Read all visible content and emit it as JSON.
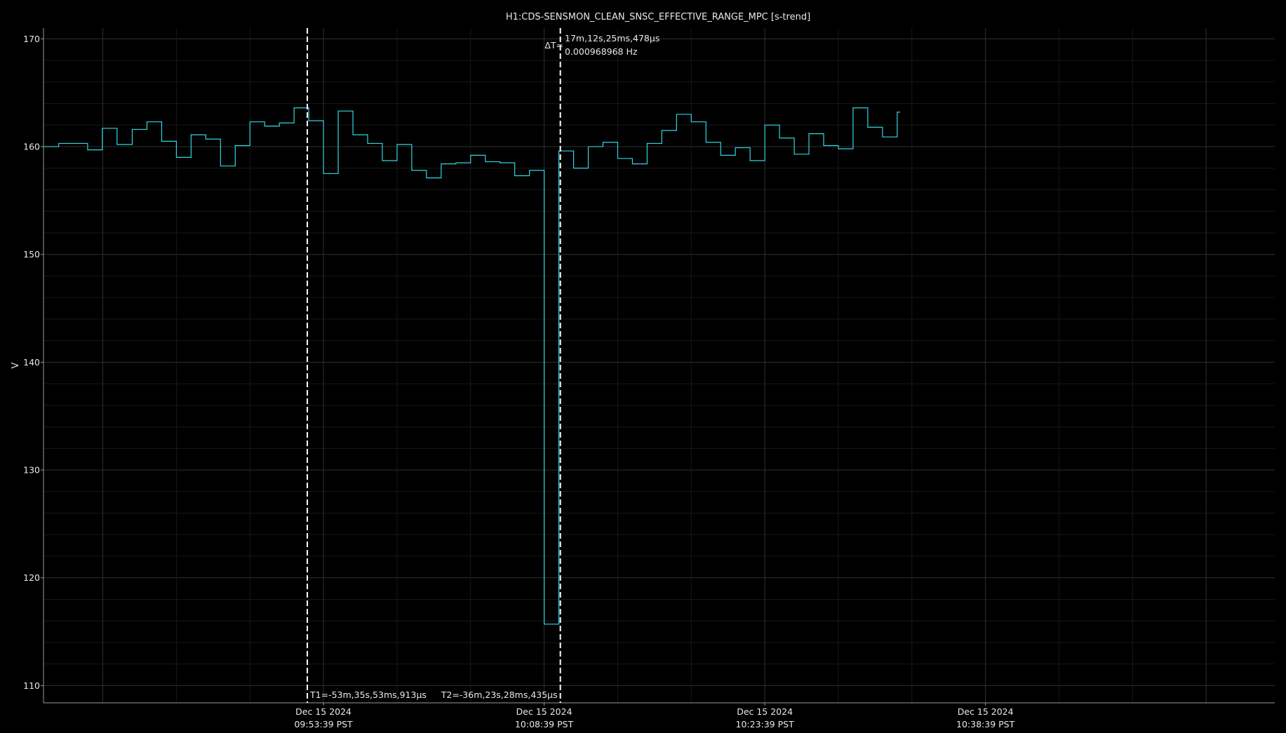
{
  "chart_data": {
    "type": "line",
    "title": "H1:CDS-SENSMON_CLEAN_SNSC_EFFECTIVE_RANGE_MPC [s-trend]",
    "ylabel": "V",
    "xlabel": "",
    "ylim": [
      108.4,
      171.0
    ],
    "yticks": [
      110,
      120,
      130,
      140,
      150,
      160,
      170
    ],
    "xlim_seconds_from_first_tick": [
      -1142,
      3880
    ],
    "xticks": [
      {
        "seconds": 0,
        "date": "Dec 15 2024",
        "time": "09:53:39 PST"
      },
      {
        "seconds": 900,
        "date": "Dec 15 2024",
        "time": "10:08:39 PST"
      },
      {
        "seconds": 1800,
        "date": "Dec 15 2024",
        "time": "10:23:39 PST"
      },
      {
        "seconds": 2700,
        "date": "Dec 15 2024",
        "time": "10:38:39 PST"
      }
    ],
    "grid": true,
    "line_color": "#31d6e3",
    "series": [
      {
        "steps": [
          {
            "x": -1142,
            "y": 160.0
          },
          {
            "x": -1080,
            "y": 160.3
          },
          {
            "x": -962,
            "y": 159.7
          },
          {
            "x": -902,
            "y": 161.7
          },
          {
            "x": -842,
            "y": 160.2
          },
          {
            "x": -780,
            "y": 161.6
          },
          {
            "x": -720,
            "y": 162.3
          },
          {
            "x": -660,
            "y": 160.5
          },
          {
            "x": -600,
            "y": 159.0
          },
          {
            "x": -540,
            "y": 161.1
          },
          {
            "x": -480,
            "y": 160.7
          },
          {
            "x": -420,
            "y": 158.2
          },
          {
            "x": -360,
            "y": 160.1
          },
          {
            "x": -300,
            "y": 162.3
          },
          {
            "x": -240,
            "y": 161.9
          },
          {
            "x": -180,
            "y": 162.2
          },
          {
            "x": -120,
            "y": 163.6
          },
          {
            "x": -60,
            "y": 162.4
          },
          {
            "x": 0,
            "y": 157.5
          },
          {
            "x": 60,
            "y": 163.3
          },
          {
            "x": 120,
            "y": 161.1
          },
          {
            "x": 180,
            "y": 160.3
          },
          {
            "x": 240,
            "y": 158.7
          },
          {
            "x": 300,
            "y": 160.2
          },
          {
            "x": 360,
            "y": 157.8
          },
          {
            "x": 420,
            "y": 157.1
          },
          {
            "x": 480,
            "y": 158.4
          },
          {
            "x": 540,
            "y": 158.5
          },
          {
            "x": 600,
            "y": 159.2
          },
          {
            "x": 660,
            "y": 158.6
          },
          {
            "x": 720,
            "y": 158.5
          },
          {
            "x": 780,
            "y": 157.3
          },
          {
            "x": 840,
            "y": 157.8
          },
          {
            "x": 900,
            "y": 115.7
          },
          {
            "x": 960,
            "y": 159.6
          },
          {
            "x": 1020,
            "y": 158.0
          },
          {
            "x": 1080,
            "y": 160.0
          },
          {
            "x": 1140,
            "y": 160.4
          },
          {
            "x": 1200,
            "y": 158.9
          },
          {
            "x": 1260,
            "y": 158.4
          },
          {
            "x": 1320,
            "y": 160.3
          },
          {
            "x": 1380,
            "y": 161.5
          },
          {
            "x": 1440,
            "y": 163.0
          },
          {
            "x": 1500,
            "y": 162.3
          },
          {
            "x": 1560,
            "y": 160.4
          },
          {
            "x": 1620,
            "y": 159.2
          },
          {
            "x": 1680,
            "y": 159.9
          },
          {
            "x": 1740,
            "y": 158.7
          },
          {
            "x": 1800,
            "y": 162.0
          },
          {
            "x": 1860,
            "y": 160.8
          },
          {
            "x": 1920,
            "y": 159.3
          },
          {
            "x": 1980,
            "y": 161.2
          },
          {
            "x": 2040,
            "y": 160.1
          },
          {
            "x": 2100,
            "y": 159.8
          },
          {
            "x": 2160,
            "y": 163.6
          },
          {
            "x": 2220,
            "y": 161.8
          },
          {
            "x": 2280,
            "y": 160.9
          },
          {
            "x": 2340,
            "y": 163.2
          },
          {
            "x": 2352,
            "y": 163.2
          }
        ]
      }
    ],
    "cursors": {
      "t1": {
        "seconds": -66,
        "label": "T1=-53m,35s,53ms,913µs"
      },
      "t2": {
        "seconds": 966,
        "label": "T2=-36m,23s,28ms,435µs"
      },
      "delta_prefix": "ΔT=",
      "delta_time": "17m,12s,25ms,478µs",
      "delta_freq": "0.000968968 Hz"
    }
  }
}
